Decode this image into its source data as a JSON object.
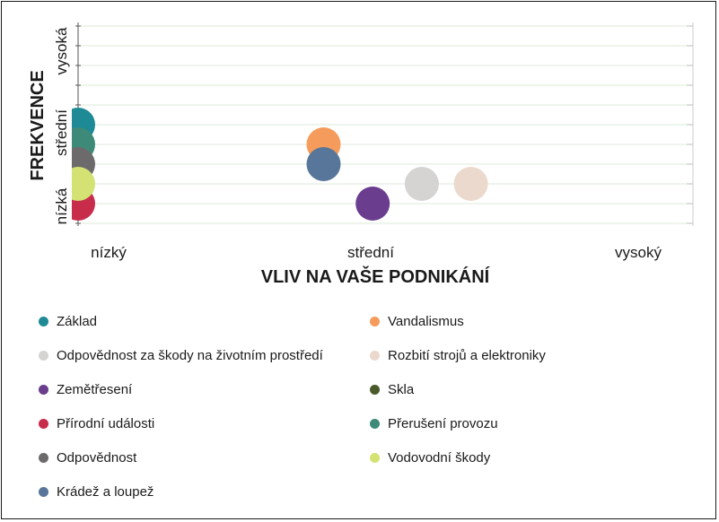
{
  "chart_data": {
    "type": "scatter",
    "xlabel": "VLIV NA VAŠE PODNIKÁNÍ",
    "ylabel": "FREKVENCE",
    "x_ticks": [
      "nízký",
      "střední",
      "vysoký"
    ],
    "y_ticks": [
      "nízká",
      "střední",
      "vysoká"
    ],
    "xlim": [
      1,
      3
    ],
    "ylim": [
      1,
      3
    ],
    "grid": true,
    "legend_position": "bottom",
    "series": [
      {
        "name": "Základ",
        "color": "#1e8a96",
        "points": [
          {
            "x": 1.0,
            "y": 2.0
          }
        ]
      },
      {
        "name": "Vandalismus",
        "color": "#f59c5c",
        "points": [
          {
            "x": 2.0,
            "y": 1.8
          }
        ]
      },
      {
        "name": "Odpovědnost za škody na životním prostředí",
        "color": "#d6d3d3",
        "points": [
          {
            "x": 2.4,
            "y": 1.4
          }
        ]
      },
      {
        "name": "Rozbití strojů a elektroniky",
        "color": "#ecd9cd",
        "points": [
          {
            "x": 2.6,
            "y": 1.4
          }
        ]
      },
      {
        "name": "Zemětřesení",
        "color": "#6a3d8f",
        "points": [
          {
            "x": 2.2,
            "y": 1.2
          }
        ]
      },
      {
        "name": "Skla",
        "color": "#4a5a2a",
        "points": []
      },
      {
        "name": "Přírodní události",
        "color": "#c72c4b",
        "points": [
          {
            "x": 1.0,
            "y": 1.2
          }
        ]
      },
      {
        "name": "Přerušení provozu",
        "color": "#3e8a78",
        "points": [
          {
            "x": 1.0,
            "y": 1.8
          }
        ]
      },
      {
        "name": "Odpovědnost",
        "color": "#6d6a6c",
        "points": [
          {
            "x": 1.0,
            "y": 1.6
          }
        ]
      },
      {
        "name": "Vodovodní škody",
        "color": "#d3e272",
        "points": [
          {
            "x": 1.0,
            "y": 1.4
          }
        ]
      },
      {
        "name": "Krádež a loupež",
        "color": "#587699",
        "points": [
          {
            "x": 2.0,
            "y": 1.6
          }
        ]
      }
    ]
  }
}
